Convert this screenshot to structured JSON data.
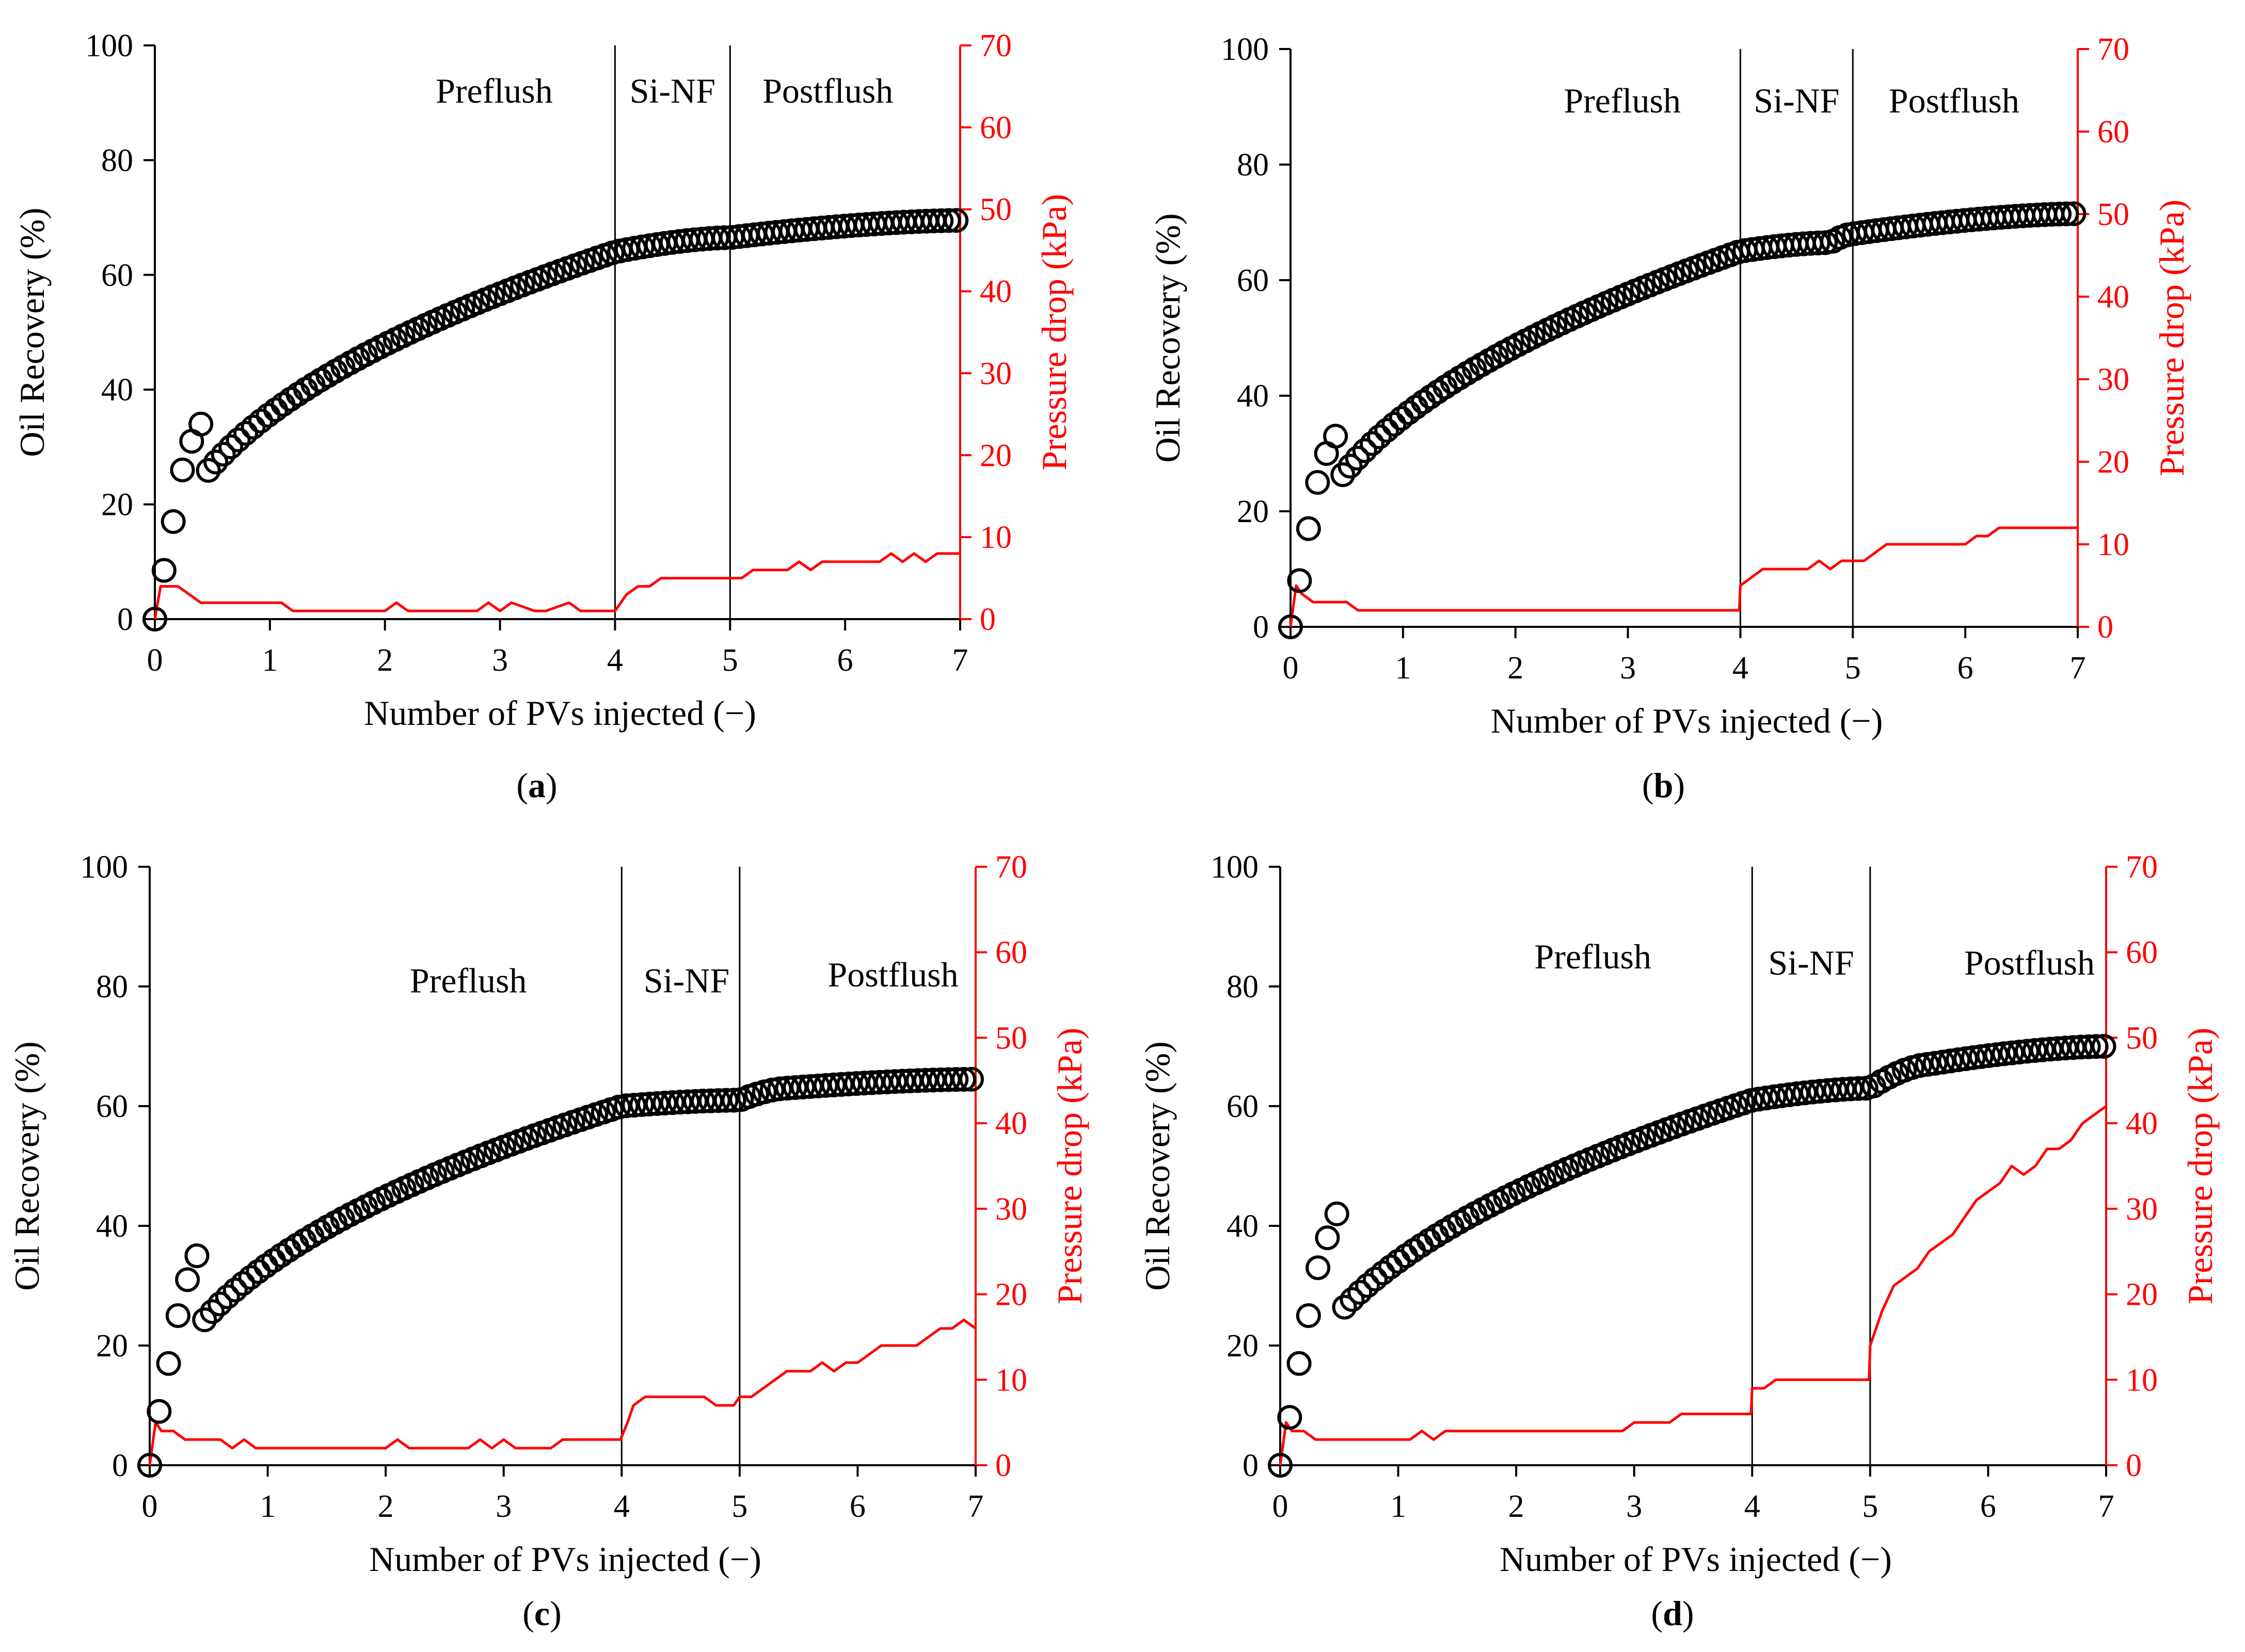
{
  "chart_data": [
    {
      "panel": "(a)",
      "caption": {
        "open": "(",
        "letter": "a",
        "close": ")"
      },
      "type": "scatter+line",
      "xlabel": "Number of PVs injected (−)",
      "ylabel": "Oil Recovery (%)",
      "y2label": "Pressure drop (kPa)",
      "xlim": [
        0,
        7
      ],
      "ylim": [
        0,
        100
      ],
      "y2lim": [
        0,
        70
      ],
      "xticks": [
        0,
        1,
        2,
        3,
        4,
        5,
        6,
        7
      ],
      "yticks": [
        0,
        20,
        40,
        60,
        80,
        100
      ],
      "y2ticks": [
        0,
        10,
        20,
        30,
        40,
        50,
        60,
        70
      ],
      "phase_boundaries": [
        4,
        5
      ],
      "phases": [
        {
          "label": "Preflush",
          "x": 2.95,
          "y": 90
        },
        {
          "label": "Si-NF",
          "x": 4.5,
          "y": 90
        },
        {
          "label": "Postflush",
          "x": 5.85,
          "y": 90
        }
      ],
      "colors": {
        "recovery": "#000000",
        "pressure": "#ff0000"
      },
      "series": [
        {
          "name": "Oil Recovery",
          "axis": "left",
          "style": "open-circles",
          "x": [
            0,
            4,
            5,
            7
          ],
          "y": [
            0,
            64,
            66.5,
            69.5
          ],
          "early_points": [
            [
              0,
              0
            ],
            [
              0.08,
              8.5
            ],
            [
              0.16,
              17
            ],
            [
              0.24,
              26
            ],
            [
              0.32,
              31
            ],
            [
              0.4,
              34
            ]
          ]
        },
        {
          "name": "Pressure drop",
          "axis": "right",
          "style": "line",
          "x": [
            0,
            0.05,
            0.1,
            0.2,
            0.3,
            0.4,
            1.0,
            1.1,
            1.2,
            2.0,
            2.1,
            2.2,
            2.3,
            2.8,
            2.9,
            3.0,
            3.1,
            3.3,
            3.4,
            3.6,
            3.7,
            4.0,
            4.05,
            4.1,
            4.2,
            4.3,
            4.4,
            5.0,
            5.1,
            5.2,
            5.5,
            5.6,
            5.7,
            5.8,
            6.3,
            6.4,
            6.5,
            6.6,
            6.7,
            6.8,
            7.0
          ],
          "y": [
            0,
            4,
            4,
            4,
            3,
            2,
            2,
            2,
            1,
            1,
            2,
            1,
            1,
            1,
            2,
            1,
            2,
            1,
            1,
            2,
            1,
            1,
            2,
            3,
            4,
            4,
            5,
            5,
            5,
            6,
            6,
            7,
            6,
            7,
            7,
            8,
            7,
            8,
            7,
            8,
            8
          ]
        }
      ]
    },
    {
      "panel": "(b)",
      "caption": {
        "open": "(",
        "letter": "b",
        "close": ")"
      },
      "type": "scatter+line",
      "xlabel": "Number of PVs injected (−)",
      "ylabel": "Oil Recovery (%)",
      "y2label": "Pressure drop (kPa)",
      "xlim": [
        0,
        7
      ],
      "ylim": [
        0,
        100
      ],
      "y2lim": [
        0,
        70
      ],
      "xticks": [
        0,
        1,
        2,
        3,
        4,
        5,
        6,
        7
      ],
      "yticks": [
        0,
        20,
        40,
        60,
        80,
        100
      ],
      "y2ticks": [
        0,
        10,
        20,
        30,
        40,
        50,
        60,
        70
      ],
      "phase_boundaries": [
        4,
        5
      ],
      "phases": [
        {
          "label": "Preflush",
          "x": 2.95,
          "y": 89
        },
        {
          "label": "Si-NF",
          "x": 4.5,
          "y": 89
        },
        {
          "label": "Postflush",
          "x": 5.9,
          "y": 89
        }
      ],
      "colors": {
        "recovery": "#000000",
        "pressure": "#ff0000"
      },
      "series": [
        {
          "name": "Oil Recovery",
          "axis": "left",
          "style": "open-circles",
          "x": [
            0,
            4,
            4.8,
            5,
            7
          ],
          "y": [
            0,
            65,
            66.5,
            68,
            71.5
          ],
          "early_points": [
            [
              0,
              0
            ],
            [
              0.08,
              8
            ],
            [
              0.16,
              17
            ],
            [
              0.24,
              25
            ],
            [
              0.32,
              30
            ],
            [
              0.4,
              33
            ]
          ]
        },
        {
          "name": "Pressure drop",
          "axis": "right",
          "style": "line",
          "x": [
            0,
            0.05,
            0.1,
            0.2,
            0.3,
            0.5,
            0.6,
            1.0,
            3.99,
            4.0,
            4.1,
            4.2,
            4.6,
            4.7,
            4.8,
            4.9,
            5.0,
            5.1,
            5.2,
            5.3,
            5.4,
            6.0,
            6.1,
            6.2,
            6.3,
            7.0
          ],
          "y": [
            0,
            5,
            4,
            3,
            3,
            3,
            2,
            2,
            2,
            5,
            6,
            7,
            7,
            8,
            7,
            8,
            8,
            8,
            9,
            10,
            10,
            10,
            11,
            11,
            12,
            12
          ]
        }
      ]
    },
    {
      "panel": "(c)",
      "caption": {
        "open": "(",
        "letter": "c",
        "close": ")"
      },
      "type": "scatter+line",
      "xlabel": "Number of PVs injected (−)",
      "ylabel": "Oil Recovery (%)",
      "y2label": "Pressure drop (kPa)",
      "xlim": [
        0,
        7
      ],
      "ylim": [
        0,
        100
      ],
      "y2lim": [
        0,
        70
      ],
      "xticks": [
        0,
        1,
        2,
        3,
        4,
        5,
        6,
        7
      ],
      "yticks": [
        0,
        20,
        40,
        60,
        80,
        100
      ],
      "y2ticks": [
        0,
        10,
        20,
        30,
        40,
        50,
        60,
        70
      ],
      "phase_boundaries": [
        4,
        5
      ],
      "phases": [
        {
          "label": "Preflush",
          "x": 2.7,
          "y": 79
        },
        {
          "label": "Si-NF",
          "x": 4.55,
          "y": 79
        },
        {
          "label": "Postflush",
          "x": 6.3,
          "y": 80
        }
      ],
      "colors": {
        "recovery": "#000000",
        "pressure": "#ff0000"
      },
      "series": [
        {
          "name": "Oil Recovery",
          "axis": "left",
          "style": "open-circles",
          "x": [
            0,
            4,
            5,
            5.4,
            7
          ],
          "y": [
            0,
            60,
            61,
            63,
            64.5
          ],
          "early_points": [
            [
              0,
              0
            ],
            [
              0.08,
              9
            ],
            [
              0.16,
              17
            ],
            [
              0.24,
              25
            ],
            [
              0.32,
              31
            ],
            [
              0.4,
              35
            ]
          ]
        },
        {
          "name": "Pressure drop",
          "axis": "right",
          "style": "line",
          "x": [
            0,
            0.05,
            0.1,
            0.2,
            0.3,
            0.6,
            0.7,
            0.8,
            0.9,
            1.0,
            2.0,
            2.1,
            2.2,
            2.7,
            2.8,
            2.9,
            3.0,
            3.1,
            3.4,
            3.5,
            3.99,
            4.05,
            4.1,
            4.2,
            4.7,
            4.8,
            4.95,
            5.0,
            5.1,
            5.2,
            5.3,
            5.4,
            5.6,
            5.7,
            5.8,
            5.9,
            6.0,
            6.1,
            6.2,
            6.3,
            6.5,
            6.6,
            6.7,
            6.8,
            6.9,
            7.0
          ],
          "y": [
            0,
            5,
            4,
            4,
            3,
            3,
            2,
            3,
            2,
            2,
            2,
            3,
            2,
            2,
            3,
            2,
            3,
            2,
            2,
            3,
            3,
            5,
            7,
            8,
            8,
            7,
            7,
            8,
            8,
            9,
            10,
            11,
            11,
            12,
            11,
            12,
            12,
            13,
            14,
            14,
            14,
            15,
            16,
            16,
            17,
            16
          ]
        }
      ]
    },
    {
      "panel": "(d)",
      "caption": {
        "open": "(",
        "letter": "d",
        "close": ")"
      },
      "type": "scatter+line",
      "xlabel": "Number of PVs injected (−)",
      "ylabel": "Oil Recovery (%)",
      "y2label": "Pressure drop (kPa)",
      "xlim": [
        0,
        7
      ],
      "ylim": [
        0,
        100
      ],
      "y2lim": [
        0,
        70
      ],
      "xticks": [
        0,
        1,
        2,
        3,
        4,
        5,
        6,
        7
      ],
      "yticks": [
        0,
        20,
        40,
        60,
        80,
        100
      ],
      "y2ticks": [
        0,
        10,
        20,
        30,
        40,
        50,
        60,
        70
      ],
      "phase_boundaries": [
        4,
        5
      ],
      "phases": [
        {
          "label": "Preflush",
          "x": 2.65,
          "y": 83
        },
        {
          "label": "Si-NF",
          "x": 4.5,
          "y": 82
        },
        {
          "label": "Postflush",
          "x": 6.35,
          "y": 82
        }
      ],
      "colors": {
        "recovery": "#000000",
        "pressure": "#ff0000"
      },
      "series": [
        {
          "name": "Oil Recovery",
          "axis": "left",
          "style": "open-circles",
          "x": [
            0,
            4,
            5,
            5.5,
            7
          ],
          "y": [
            0,
            61,
            63,
            67,
            70
          ],
          "early_points": [
            [
              0,
              0
            ],
            [
              0.08,
              8
            ],
            [
              0.16,
              17
            ],
            [
              0.24,
              25
            ],
            [
              0.32,
              33
            ],
            [
              0.4,
              38
            ],
            [
              0.48,
              42
            ]
          ]
        },
        {
          "name": "Pressure drop",
          "axis": "right",
          "style": "line",
          "x": [
            0,
            0.05,
            0.1,
            0.2,
            0.3,
            1.1,
            1.2,
            1.3,
            1.4,
            2.9,
            3.0,
            3.3,
            3.4,
            3.99,
            4.0,
            4.1,
            4.2,
            4.3,
            4.99,
            5.0,
            5.1,
            5.2,
            5.3,
            5.4,
            5.5,
            5.6,
            5.7,
            5.8,
            5.9,
            6.0,
            6.1,
            6.2,
            6.3,
            6.4,
            6.5,
            6.6,
            6.7,
            6.8,
            6.9,
            7.0
          ],
          "y": [
            0,
            5,
            4,
            4,
            3,
            3,
            4,
            3,
            4,
            4,
            5,
            5,
            6,
            6,
            9,
            9,
            10,
            10,
            10,
            14,
            18,
            21,
            22,
            23,
            25,
            26,
            27,
            29,
            31,
            32,
            33,
            35,
            34,
            35,
            37,
            37,
            38,
            40,
            41,
            42
          ]
        }
      ]
    }
  ]
}
